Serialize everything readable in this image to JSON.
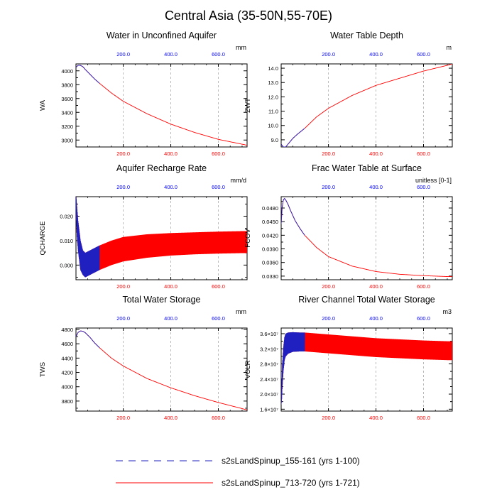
{
  "figure": {
    "title": "Central Asia (35-50N,55-70E)"
  },
  "legend": [
    {
      "label": "s2sLandSpinup_155-161 (yrs 1-100)",
      "color": "#2020c0",
      "style": "dashed"
    },
    {
      "label": "s2sLandSpinup_713-720 (yrs 1-721)",
      "color": "#ff0000",
      "style": "solid"
    }
  ],
  "colors": {
    "top_ticks": "#0000ff",
    "bottom_ticks": "#ff0000",
    "blue_series": "#2020c0",
    "red_series": "#ff0000"
  },
  "chart_data": [
    {
      "type": "line",
      "title": "Water in Unconfined Aquifer",
      "ylabel": "WA",
      "units": "mm",
      "xlim": [
        1,
        721
      ],
      "ylim": [
        2900,
        4100
      ],
      "x_ticks": [
        200,
        400,
        600
      ],
      "x_tick_labels": [
        "200.0",
        "400.0",
        "600.0"
      ],
      "top_x_ticks": [
        200,
        400,
        600
      ],
      "top_x_tick_labels": [
        "200.0",
        "400.0",
        "600.0"
      ],
      "y_ticks": [
        3000,
        3200,
        3400,
        3600,
        3800,
        4000
      ],
      "y_tick_labels": [
        "3000",
        "3200",
        "3400",
        "3600",
        "3800",
        "4000"
      ],
      "series": [
        {
          "name": "s2sLandSpinup_155-161",
          "x": [
            1,
            10,
            20,
            30,
            40,
            60,
            80,
            100
          ],
          "y": [
            4050,
            4080,
            4078,
            4060,
            4020,
            3950,
            3880,
            3820
          ]
        },
        {
          "name": "s2sLandSpinup_713-720",
          "x": [
            1,
            10,
            20,
            30,
            40,
            60,
            80,
            100,
            150,
            200,
            300,
            400,
            500,
            600,
            700,
            721
          ],
          "y": [
            4050,
            4080,
            4078,
            4060,
            4020,
            3950,
            3880,
            3820,
            3680,
            3560,
            3380,
            3230,
            3110,
            3010,
            2940,
            2925
          ]
        }
      ]
    },
    {
      "type": "line",
      "title": "Water Table Depth",
      "ylabel": "ZWT",
      "units": "m",
      "xlim": [
        1,
        721
      ],
      "ylim": [
        8.5,
        14.3
      ],
      "x_ticks": [
        200,
        400,
        600
      ],
      "x_tick_labels": [
        "200.0",
        "400.0",
        "600.0"
      ],
      "top_x_ticks": [
        200,
        400,
        600
      ],
      "top_x_tick_labels": [
        "200.0",
        "400.0",
        "600.0"
      ],
      "y_ticks": [
        9,
        10,
        11,
        12,
        13,
        14
      ],
      "y_tick_labels": [
        "9.0",
        "10.0",
        "11.0",
        "12.0",
        "13.0",
        "14.0"
      ],
      "series": [
        {
          "name": "s2sLandSpinup_155-161",
          "x": [
            1,
            10,
            20,
            30,
            50,
            70,
            100
          ],
          "y": [
            8.7,
            8.5,
            8.5,
            8.7,
            9.1,
            9.4,
            9.8
          ]
        },
        {
          "name": "s2sLandSpinup_713-720",
          "x": [
            1,
            10,
            20,
            30,
            50,
            70,
            100,
            150,
            200,
            300,
            400,
            500,
            600,
            700,
            721
          ],
          "y": [
            8.7,
            8.5,
            8.5,
            8.7,
            9.1,
            9.4,
            9.8,
            10.6,
            11.2,
            12.1,
            12.8,
            13.3,
            13.8,
            14.2,
            14.3
          ]
        }
      ]
    },
    {
      "type": "line",
      "title": "Aquifer Recharge Rate",
      "ylabel": "QCHARGE",
      "units": "mm/d",
      "xlim": [
        1,
        721
      ],
      "ylim": [
        -0.006,
        0.028
      ],
      "x_ticks": [
        200,
        400,
        600
      ],
      "x_tick_labels": [
        "200.0",
        "400.0",
        "600.0"
      ],
      "top_x_ticks": [
        200,
        400,
        600
      ],
      "top_x_tick_labels": [
        "200.0",
        "400.0",
        "600.0"
      ],
      "y_ticks": [
        0.0,
        0.01,
        0.02
      ],
      "y_tick_labels": [
        "0.000",
        "0.010",
        "0.020"
      ],
      "series": [
        {
          "name": "s2sLandSpinup_155-161",
          "x": [
            1,
            5,
            10,
            20,
            30,
            40,
            60,
            80,
            100
          ],
          "y": [
            0.026,
            0.018,
            0.012,
            0.004,
            0.001,
            0.0,
            0.001,
            0.002,
            0.003
          ],
          "amplitude": [
            0.004,
            0.006,
            0.006,
            0.006,
            0.005,
            0.005,
            0.005,
            0.005,
            0.005
          ]
        },
        {
          "name": "s2sLandSpinup_713-720",
          "x": [
            1,
            5,
            10,
            20,
            30,
            40,
            60,
            80,
            100,
            150,
            200,
            300,
            400,
            500,
            600,
            700,
            721
          ],
          "y": [
            0.026,
            0.018,
            0.012,
            0.004,
            0.001,
            0.0,
            0.001,
            0.002,
            0.003,
            0.005,
            0.0065,
            0.0078,
            0.0085,
            0.0089,
            0.0092,
            0.0094,
            0.0094
          ],
          "amplitude": [
            0.004,
            0.006,
            0.006,
            0.006,
            0.005,
            0.005,
            0.005,
            0.005,
            0.005,
            0.005,
            0.005,
            0.0048,
            0.0046,
            0.0045,
            0.0045,
            0.0045,
            0.0045
          ]
        }
      ]
    },
    {
      "type": "line",
      "title": "Frac Water Table at Surface",
      "ylabel": "FCOV",
      "units": "unitless [0-1]",
      "xlim": [
        1,
        721
      ],
      "ylim": [
        0.0322,
        0.0505
      ],
      "x_ticks": [
        200,
        400,
        600
      ],
      "x_tick_labels": [
        "200.0",
        "400.0",
        "600.0"
      ],
      "top_x_ticks": [
        200,
        400,
        600
      ],
      "top_x_tick_labels": [
        "200.0",
        "400.0",
        "600.0"
      ],
      "y_ticks": [
        0.033,
        0.036,
        0.039,
        0.042,
        0.045,
        0.048
      ],
      "y_tick_labels": [
        "0.0330",
        "0.0360",
        "0.0390",
        "0.0420",
        "0.0450",
        "0.0480"
      ],
      "series": [
        {
          "name": "s2sLandSpinup_155-161",
          "x": [
            1,
            5,
            10,
            15,
            20,
            30,
            40,
            60,
            80,
            100
          ],
          "y": [
            0.0445,
            0.048,
            0.0498,
            0.0501,
            0.0498,
            0.0488,
            0.0475,
            0.0452,
            0.0435,
            0.042
          ]
        },
        {
          "name": "s2sLandSpinup_713-720",
          "x": [
            1,
            5,
            10,
            15,
            20,
            30,
            40,
            60,
            80,
            100,
            150,
            200,
            300,
            400,
            500,
            600,
            700,
            721
          ],
          "y": [
            0.0445,
            0.048,
            0.0498,
            0.0501,
            0.0498,
            0.0488,
            0.0475,
            0.0452,
            0.0435,
            0.042,
            0.0393,
            0.0373,
            0.0352,
            0.034,
            0.0334,
            0.0331,
            0.0329,
            0.0329
          ]
        }
      ]
    },
    {
      "type": "line",
      "title": "Total Water Storage",
      "ylabel": "TWS",
      "units": "mm",
      "xlim": [
        1,
        721
      ],
      "ylim": [
        3660,
        4820
      ],
      "x_ticks": [
        200,
        400,
        600
      ],
      "x_tick_labels": [
        "200.0",
        "400.0",
        "600.0"
      ],
      "top_x_ticks": [
        200,
        400,
        600
      ],
      "top_x_tick_labels": [
        "200.0",
        "400.0",
        "600.0"
      ],
      "y_ticks": [
        3800,
        4000,
        4200,
        4400,
        4600,
        4800
      ],
      "y_tick_labels": [
        "3800",
        "4000",
        "4200",
        "4400",
        "4600",
        "4800"
      ],
      "series": [
        {
          "name": "s2sLandSpinup_155-161",
          "x": [
            1,
            10,
            20,
            30,
            40,
            60,
            80,
            100
          ],
          "y": [
            4700,
            4760,
            4780,
            4775,
            4755,
            4690,
            4610,
            4545
          ]
        },
        {
          "name": "s2sLandSpinup_713-720",
          "x": [
            1,
            10,
            20,
            30,
            40,
            60,
            80,
            100,
            150,
            200,
            300,
            400,
            500,
            600,
            700,
            721
          ],
          "y": [
            4700,
            4760,
            4780,
            4775,
            4755,
            4690,
            4610,
            4545,
            4400,
            4290,
            4115,
            3985,
            3875,
            3780,
            3695,
            3675
          ]
        }
      ]
    },
    {
      "type": "line",
      "title": "River Channel Total Water Storage",
      "ylabel": "VOLR",
      "units": "m3",
      "xlim": [
        1,
        721
      ],
      "ylim": [
        15500000.0,
        37500000.0
      ],
      "x_ticks": [
        200,
        400,
        600
      ],
      "x_tick_labels": [
        "200.0",
        "400.0",
        "600.0"
      ],
      "top_x_ticks": [
        200,
        400,
        600
      ],
      "top_x_tick_labels": [
        "200.0",
        "400.0",
        "600.0"
      ],
      "y_ticks": [
        16000000.0,
        20000000.0,
        24000000.0,
        28000000.0,
        32000000.0,
        36000000.0
      ],
      "y_tick_labels": [
        "1.6×10⁷",
        "2.0×10⁷",
        "2.4×10⁷",
        "2.8×10⁷",
        "3.2×10⁷",
        "3.6×10⁷"
      ],
      "series": [
        {
          "name": "s2sLandSpinup_155-161",
          "x": [
            1,
            3,
            6,
            10,
            15,
            20,
            30,
            50,
            80,
            100
          ],
          "y": [
            18000000.0,
            20000000.0,
            25000000.0,
            29000000.0,
            32000000.0,
            33000000.0,
            33500000.0,
            33800000.0,
            33800000.0,
            33800000.0
          ],
          "amplitude": [
            1000000.0,
            2000000.0,
            3000000.0,
            3000000.0,
            3000000.0,
            3000000.0,
            2800000.0,
            2600000.0,
            2500000.0,
            2500000.0
          ]
        },
        {
          "name": "s2sLandSpinup_713-720",
          "x": [
            1,
            3,
            6,
            10,
            15,
            20,
            30,
            50,
            80,
            100,
            200,
            300,
            400,
            500,
            600,
            700,
            721
          ],
          "y": [
            18000000.0,
            20000000.0,
            25000000.0,
            29000000.0,
            32000000.0,
            33000000.0,
            33500000.0,
            33800000.0,
            33800000.0,
            33800000.0,
            33300000.0,
            32800000.0,
            32300000.0,
            32000000.0,
            31700000.0,
            31500000.0,
            31500000.0
          ],
          "amplitude": [
            1000000.0,
            2000000.0,
            3000000.0,
            3000000.0,
            3000000.0,
            3000000.0,
            2800000.0,
            2600000.0,
            2500000.0,
            2500000.0,
            2500000.0,
            2500000.0,
            2500000.0,
            2500000.0,
            2500000.0,
            2500000.0,
            2500000.0
          ]
        }
      ]
    }
  ]
}
